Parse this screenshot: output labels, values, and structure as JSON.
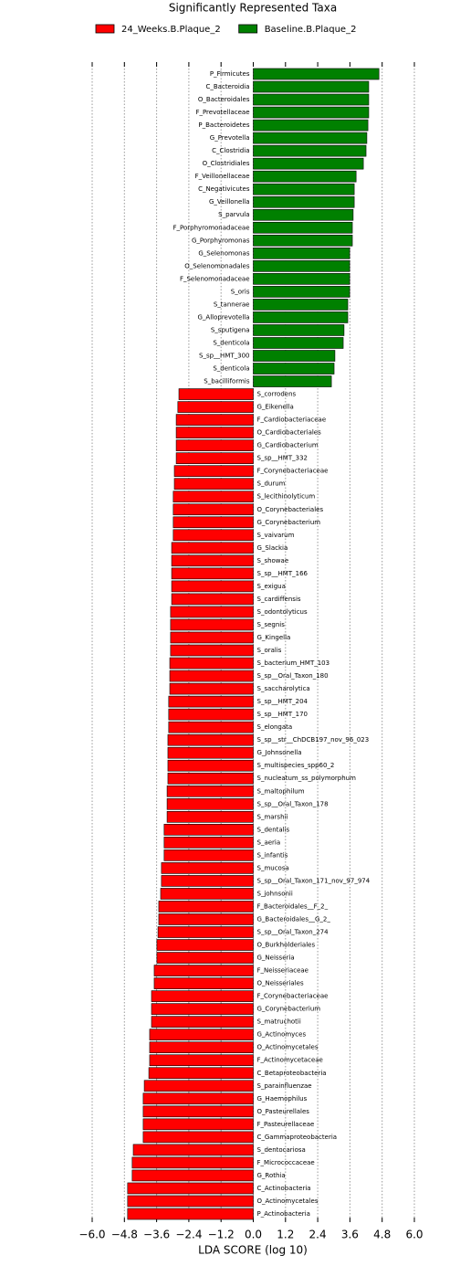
{
  "chart_data": {
    "type": "barh",
    "title": "Significantly Represented Taxa",
    "xlabel": "LDA SCORE (log 10)",
    "xlim": [
      -6.0,
      6.0
    ],
    "xticks": [
      {
        "value": -6.0,
        "label": "−6.0"
      },
      {
        "value": -4.8,
        "label": "−4.8"
      },
      {
        "value": -3.6,
        "label": "−3.6"
      },
      {
        "value": -2.4,
        "label": "−2.4"
      },
      {
        "value": -1.2,
        "label": "−1.2"
      },
      {
        "value": 0,
        "label": "0.0"
      },
      {
        "value": 1.2,
        "label": "1.2"
      },
      {
        "value": 2.4,
        "label": "2.4"
      },
      {
        "value": 3.6,
        "label": "3.6"
      },
      {
        "value": 4.8,
        "label": "4.8"
      },
      {
        "value": 6.0,
        "label": "6.0"
      }
    ],
    "grid": true,
    "legend": "top",
    "categories": [
      "P_Firmicutes",
      "C_Bacteroidia",
      "O_Bacteroidales",
      "F_Prevotellaceae",
      "P_Bacteroidetes",
      "G_Prevotella",
      "C_Clostridia",
      "O_Clostridiales",
      "F_Veillonellaceae",
      "C_Negativicutes",
      "G_Veillonella",
      "S_parvula",
      "F_Porphyromonadaceae",
      "G_Porphyromonas",
      "G_Selenomonas",
      "O_Selenomonadales",
      "F_Selenomonadaceae",
      "S_oris",
      "S_tannerae",
      "G_Alloprevotella",
      "S_sputigena",
      "S_denticola",
      "S_sp__HMT_300",
      "S_denticola",
      "S_bacilliformis",
      "S_corrodens",
      "G_Eikenella",
      "F_Cardiobacteriaceae",
      "O_Cardiobacteriales",
      "G_Cardiobacterium",
      "S_sp__HMT_332",
      "F_Corynebacteriaceae",
      "S_durum",
      "S_lecithinolyticum",
      "O_Corynebacteriales",
      "G_Corynebacterium",
      "S_vaivarum",
      "G_Slackia",
      "S_showae",
      "S_sp__HMT_166",
      "S_exigua",
      "S_cardiffensis",
      "S_odontolyticus",
      "S_segnis",
      "G_Kingella",
      "S_oralis",
      "S_bacterium_HMT_103",
      "S_sp__Oral_Taxon_180",
      "S_saccharolytica",
      "S_sp__HMT_204",
      "S_sp__HMT_170",
      "S_elongata",
      "S_sp__str__ChDCB197_nov_96_023",
      "G_Johnsonella",
      "S_multispecies_spp60_2",
      "S_nucleatum_ss_polymorphum",
      "S_maltophilum",
      "S_sp__Oral_Taxon_178",
      "S_marshii",
      "S_dentalis",
      "S_aeria",
      "S_infantis",
      "S_mucosa",
      "S_sp__Oral_Taxon_171_nov_97_974",
      "S_johnsonii",
      "F_Bacteroidales__F_2_",
      "G_Bacteroidales__G_2_",
      "S_sp__Oral_Taxon_274",
      "O_Burkholderiales",
      "G_Neisseria",
      "F_Neisseriaceae",
      "O_Neisseriales",
      "F_Corynebacteriaceae",
      "G_Corynebacterium",
      "S_matruchotii",
      "G_Actinomyces",
      "O_Actinomycetales",
      "F_Actinomycetaceae",
      "C_Betaproteobacteria",
      "S_parainfluenzae",
      "G_Haemophilus",
      "O_Pasteurellales",
      "F_Pasteurellaceae",
      "C_Gammaproteobacteria",
      "S_dentocariosa",
      "F_Micrococcaceae",
      "G_Rothia",
      "C_Actinobacteria",
      "O_Actinomycetales",
      "P_Actinobacteria"
    ],
    "series": [
      {
        "name": "24_Weeks.B.Plaque_2",
        "color": "#ff0000",
        "values": [
          null,
          null,
          null,
          null,
          null,
          null,
          null,
          null,
          null,
          null,
          null,
          null,
          null,
          null,
          null,
          null,
          null,
          null,
          null,
          null,
          null,
          null,
          null,
          null,
          null,
          -2.77,
          -2.81,
          -2.87,
          -2.87,
          -2.87,
          -2.87,
          -2.94,
          -2.94,
          -2.98,
          -2.98,
          -2.98,
          -2.98,
          -3.04,
          -3.04,
          -3.04,
          -3.04,
          -3.04,
          -3.08,
          -3.08,
          -3.08,
          -3.08,
          -3.11,
          -3.11,
          -3.11,
          -3.15,
          -3.15,
          -3.15,
          -3.18,
          -3.18,
          -3.18,
          -3.18,
          -3.21,
          -3.21,
          -3.21,
          -3.32,
          -3.32,
          -3.32,
          -3.42,
          -3.42,
          -3.45,
          -3.52,
          -3.52,
          -3.55,
          -3.59,
          -3.59,
          -3.69,
          -3.69,
          -3.79,
          -3.79,
          -3.79,
          -3.86,
          -3.86,
          -3.86,
          -3.89,
          -4.06,
          -4.1,
          -4.1,
          -4.1,
          -4.1,
          -4.47,
          -4.51,
          -4.51,
          -4.68,
          -4.68,
          -4.68
        ]
      },
      {
        "name": "Baseline.B.Plaque_2",
        "color": "#008000",
        "values": [
          4.68,
          4.3,
          4.3,
          4.3,
          4.27,
          4.23,
          4.2,
          4.1,
          3.83,
          3.76,
          3.76,
          3.72,
          3.69,
          3.69,
          3.59,
          3.59,
          3.59,
          3.59,
          3.52,
          3.52,
          3.38,
          3.35,
          3.04,
          3.01,
          2.91,
          null,
          null,
          null,
          null,
          null,
          null,
          null,
          null,
          null,
          null,
          null,
          null,
          null,
          null,
          null,
          null,
          null,
          null,
          null,
          null,
          null,
          null,
          null,
          null,
          null,
          null,
          null,
          null,
          null,
          null,
          null,
          null,
          null,
          null,
          null,
          null,
          null,
          null,
          null,
          null,
          null,
          null,
          null,
          null,
          null,
          null,
          null,
          null,
          null,
          null,
          null,
          null,
          null,
          null,
          null,
          null,
          null,
          null,
          null,
          null,
          null,
          null,
          null,
          null,
          null
        ]
      }
    ]
  }
}
